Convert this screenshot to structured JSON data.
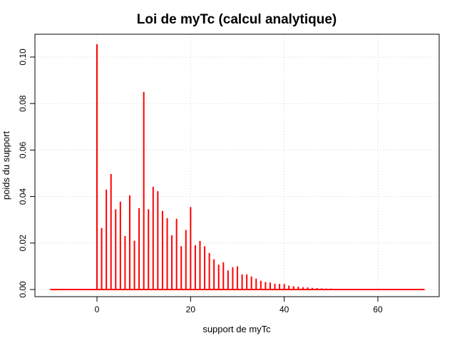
{
  "chart_data": {
    "type": "bar",
    "title": "Loi de myTc (calcul analytique)",
    "xlabel": "support de myTc",
    "ylabel": "poids du support",
    "xlim": [
      -10,
      70
    ],
    "ylim": [
      0,
      0.105
    ],
    "xticks": [
      0,
      20,
      40,
      60
    ],
    "yticks": [
      0.0,
      0.02,
      0.04,
      0.06,
      0.08,
      0.1
    ],
    "ytick_labels": [
      "0.00",
      "0.02",
      "0.04",
      "0.06",
      "0.08",
      "0.10"
    ],
    "xtick_labels": [
      "0",
      "20",
      "40",
      "60"
    ],
    "grid": true,
    "bar_color": "#ff0000",
    "baseline_range": [
      -10,
      70
    ],
    "x": [
      0,
      1,
      2,
      3,
      4,
      5,
      6,
      7,
      8,
      9,
      10,
      11,
      12,
      13,
      14,
      15,
      16,
      17,
      18,
      19,
      20,
      21,
      22,
      23,
      24,
      25,
      26,
      27,
      28,
      29,
      30,
      31,
      32,
      33,
      34,
      35,
      36,
      37,
      38,
      39,
      40,
      41,
      42,
      43,
      44,
      45,
      46,
      47,
      48,
      49,
      50,
      51,
      52,
      53,
      54,
      55,
      56,
      57,
      58,
      59,
      60,
      61,
      62,
      63,
      64,
      65,
      66,
      67,
      68,
      69,
      70
    ],
    "values": [
      0.1055,
      0.0265,
      0.043,
      0.0497,
      0.0345,
      0.0378,
      0.023,
      0.0405,
      0.021,
      0.035,
      0.085,
      0.0345,
      0.0442,
      0.0423,
      0.0338,
      0.0307,
      0.0233,
      0.0304,
      0.0186,
      0.0256,
      0.0355,
      0.0191,
      0.0209,
      0.0186,
      0.0157,
      0.013,
      0.0107,
      0.0117,
      0.0082,
      0.0096,
      0.01,
      0.0065,
      0.0065,
      0.0056,
      0.0047,
      0.0038,
      0.0032,
      0.003,
      0.0025,
      0.0024,
      0.0024,
      0.0017,
      0.0014,
      0.0012,
      0.001,
      0.0009,
      0.0007,
      0.0006,
      0.0005,
      0.0004,
      0.0004,
      0.0003,
      0.0003,
      0,
      0,
      0,
      0,
      0,
      0,
      0,
      0,
      0,
      0,
      0,
      0,
      0,
      0,
      0,
      0,
      0,
      0
    ]
  }
}
